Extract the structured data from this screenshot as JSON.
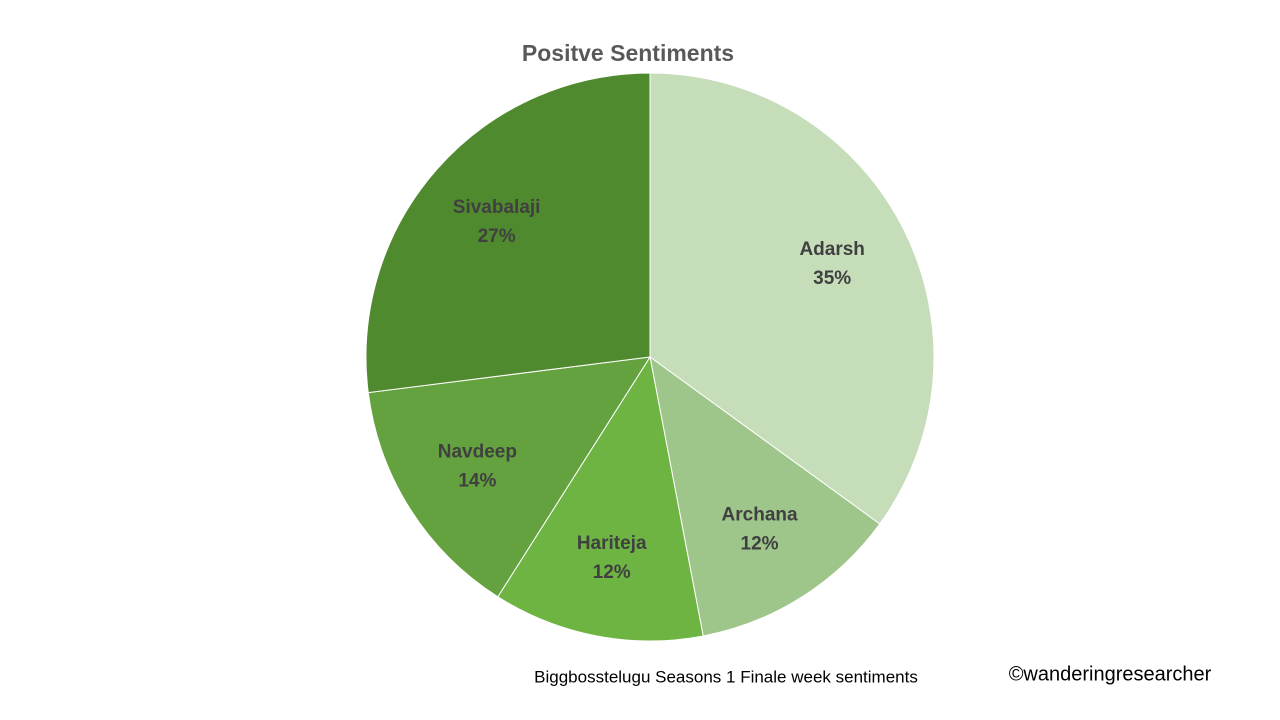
{
  "chart_data": {
    "type": "pie",
    "title": "Positve Sentiments",
    "categories": [
      "Adarsh",
      "Archana",
      "Hariteja",
      "Navdeep",
      "Sivabalaji"
    ],
    "values": [
      35,
      12,
      12,
      14,
      27
    ],
    "value_labels": [
      "35%",
      "12%",
      "12%",
      "14%",
      "27%"
    ],
    "colors": [
      "#c6ddb9",
      "#9fc68a",
      "#6db443",
      "#64a23f",
      "#4f8a2e"
    ],
    "annotations": [
      "Biggbosstelugu  Seasons 1 Finale week sentiments",
      "©wanderingresearcher"
    ]
  }
}
